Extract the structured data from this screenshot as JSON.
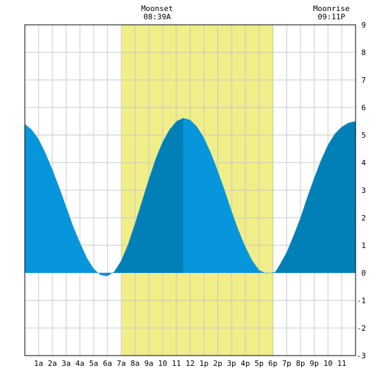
{
  "chart_data": {
    "type": "area",
    "x_tick_labels": [
      "1a",
      "2a",
      "3a",
      "4a",
      "5a",
      "6a",
      "7a",
      "8a",
      "9a",
      "10",
      "11",
      "12",
      "1p",
      "2p",
      "3p",
      "4p",
      "5p",
      "6p",
      "7p",
      "8p",
      "9p",
      "10",
      "11"
    ],
    "xlim": [
      0,
      24
    ],
    "ylim": [
      -3,
      9
    ],
    "y_ticks": [
      -3,
      -2,
      -1,
      0,
      1,
      2,
      3,
      4,
      5,
      6,
      7,
      8,
      9
    ],
    "grid": true,
    "daylight_band": {
      "start_hour": 7.0,
      "end_hour": 18.05
    },
    "series": [
      {
        "x": [
          0,
          0.5,
          1,
          1.5,
          2,
          2.5,
          3,
          3.5,
          4,
          4.5,
          5,
          5.5,
          5.9,
          6,
          6.5,
          7,
          7.5,
          8,
          8.5,
          9,
          9.5,
          10,
          10.5,
          11,
          11.5,
          12,
          12.5,
          13,
          13.5,
          14,
          14.5,
          15,
          15.5,
          16,
          16.5,
          17,
          17.5,
          18,
          18.2,
          18.5,
          19,
          19.5,
          20,
          20.5,
          21,
          21.5,
          22,
          22.5,
          23,
          23.5,
          24
        ],
        "y": [
          5.4,
          5.2,
          4.85,
          4.35,
          3.75,
          3.1,
          2.4,
          1.7,
          1.1,
          0.55,
          0.15,
          -0.08,
          -0.12,
          -0.11,
          0.05,
          0.45,
          1.05,
          1.8,
          2.6,
          3.4,
          4.15,
          4.75,
          5.2,
          5.5,
          5.62,
          5.55,
          5.3,
          4.9,
          4.35,
          3.7,
          3.0,
          2.25,
          1.55,
          0.95,
          0.45,
          0.1,
          -0.02,
          0.02,
          0.05,
          0.3,
          0.75,
          1.35,
          2.0,
          2.75,
          3.45,
          4.1,
          4.65,
          5.05,
          5.3,
          5.45,
          5.5
        ]
      }
    ],
    "shading_breaks": [
      {
        "from_hour": 0,
        "to_hour": 6.0,
        "color": "#0796db"
      },
      {
        "from_hour": 6.0,
        "to_hour": 11.5,
        "color": "#0080b6"
      },
      {
        "from_hour": 11.5,
        "to_hour": 18.2,
        "color": "#0796db"
      },
      {
        "from_hour": 18.2,
        "to_hour": 24,
        "color": "#0080b6"
      }
    ],
    "annotations": [
      {
        "name": "moonset",
        "label": "Moonset",
        "time": "08:39A"
      },
      {
        "name": "moonrise",
        "label": "Moonrise",
        "time": "09:11P"
      }
    ]
  },
  "colors": {
    "light_fill": "#0796db",
    "dark_fill": "#0080b6",
    "daylight": "#f0ee88",
    "grid": "#c8c8c8",
    "border": "#000000"
  }
}
